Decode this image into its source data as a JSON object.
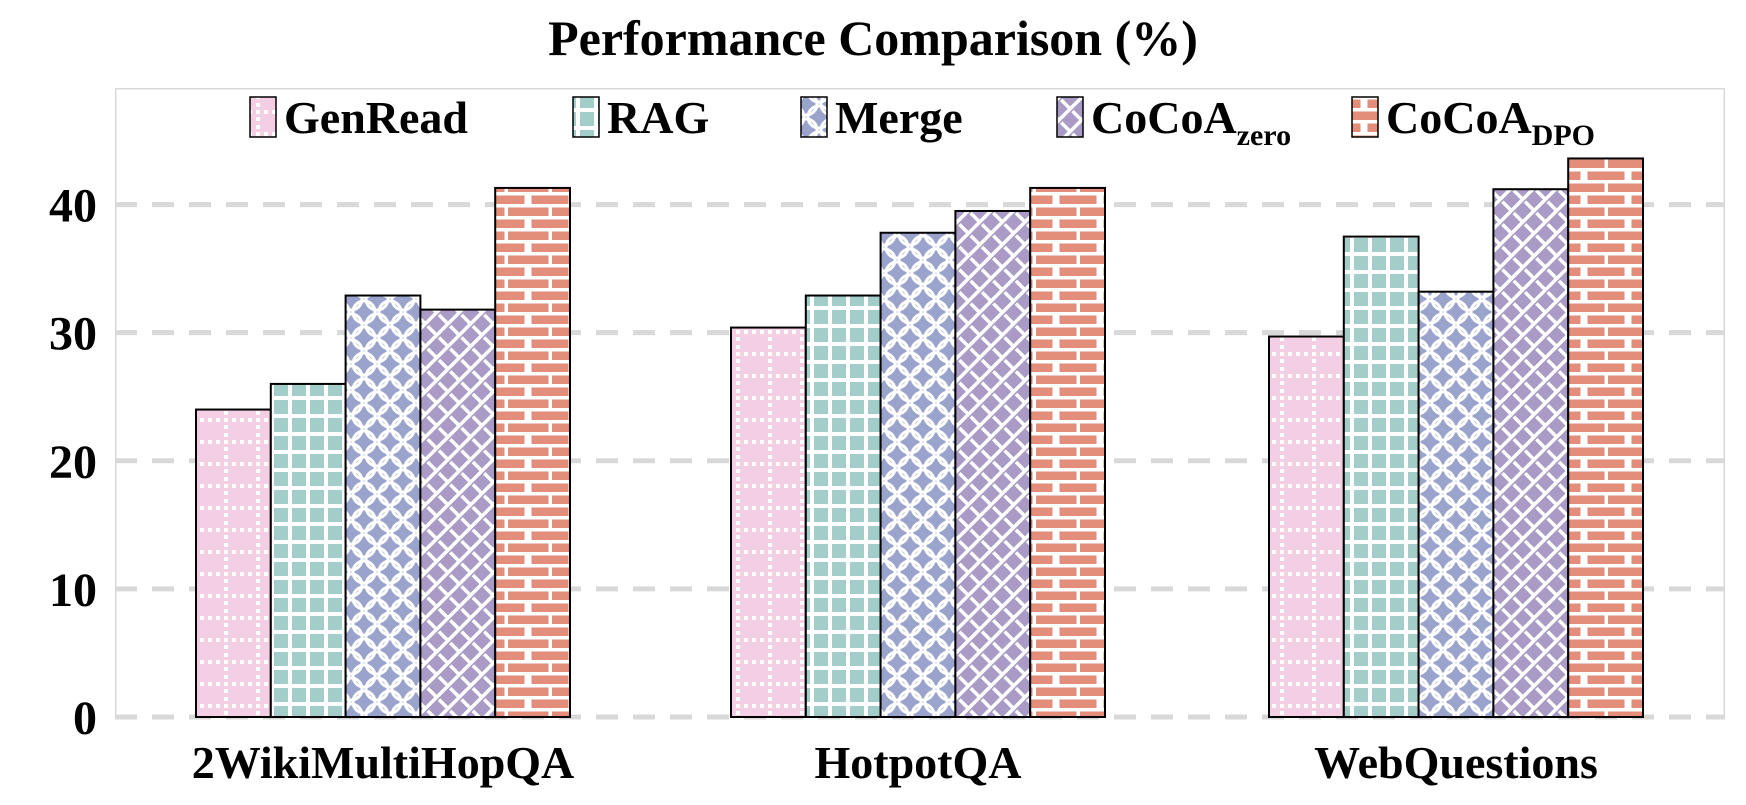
{
  "title": "Performance Comparison (%)",
  "chart_data": {
    "type": "bar",
    "title": "Performance Comparison (%)",
    "categories": [
      "2WikiMultiHopQA",
      "HotpotQA",
      "WebQuestions"
    ],
    "series": [
      {
        "name": "GenRead",
        "sub": "",
        "pattern": "dotted-grid",
        "color": "#f4cfe4",
        "values": [
          24.0,
          30.4,
          29.7
        ]
      },
      {
        "name": "RAG",
        "sub": "",
        "pattern": "grid",
        "color": "#a3cdc8",
        "values": [
          26.0,
          32.9,
          37.5
        ]
      },
      {
        "name": "Merge",
        "sub": "",
        "pattern": "scales",
        "color": "#9aa3cc",
        "values": [
          32.9,
          37.8,
          33.2
        ]
      },
      {
        "name": "CoCoA",
        "sub": "zero",
        "pattern": "diagonal",
        "color": "#a99bc5",
        "values": [
          31.8,
          39.5,
          41.2
        ]
      },
      {
        "name": "CoCoA",
        "sub": "DPO",
        "pattern": "brick",
        "color": "#e28e7a",
        "values": [
          41.3,
          41.3,
          43.6
        ]
      }
    ],
    "yticks": [
      0,
      10,
      20,
      30,
      40
    ],
    "ylim": [
      0,
      49.1
    ],
    "grid": "horizontal-dashed",
    "legend_position": "top-inside",
    "colors": {
      "gridline": "#d8d8d8",
      "plot_border": "#d9d9d9",
      "bar_border": "#000000",
      "text": "#000000",
      "background": "#ffffff"
    }
  }
}
